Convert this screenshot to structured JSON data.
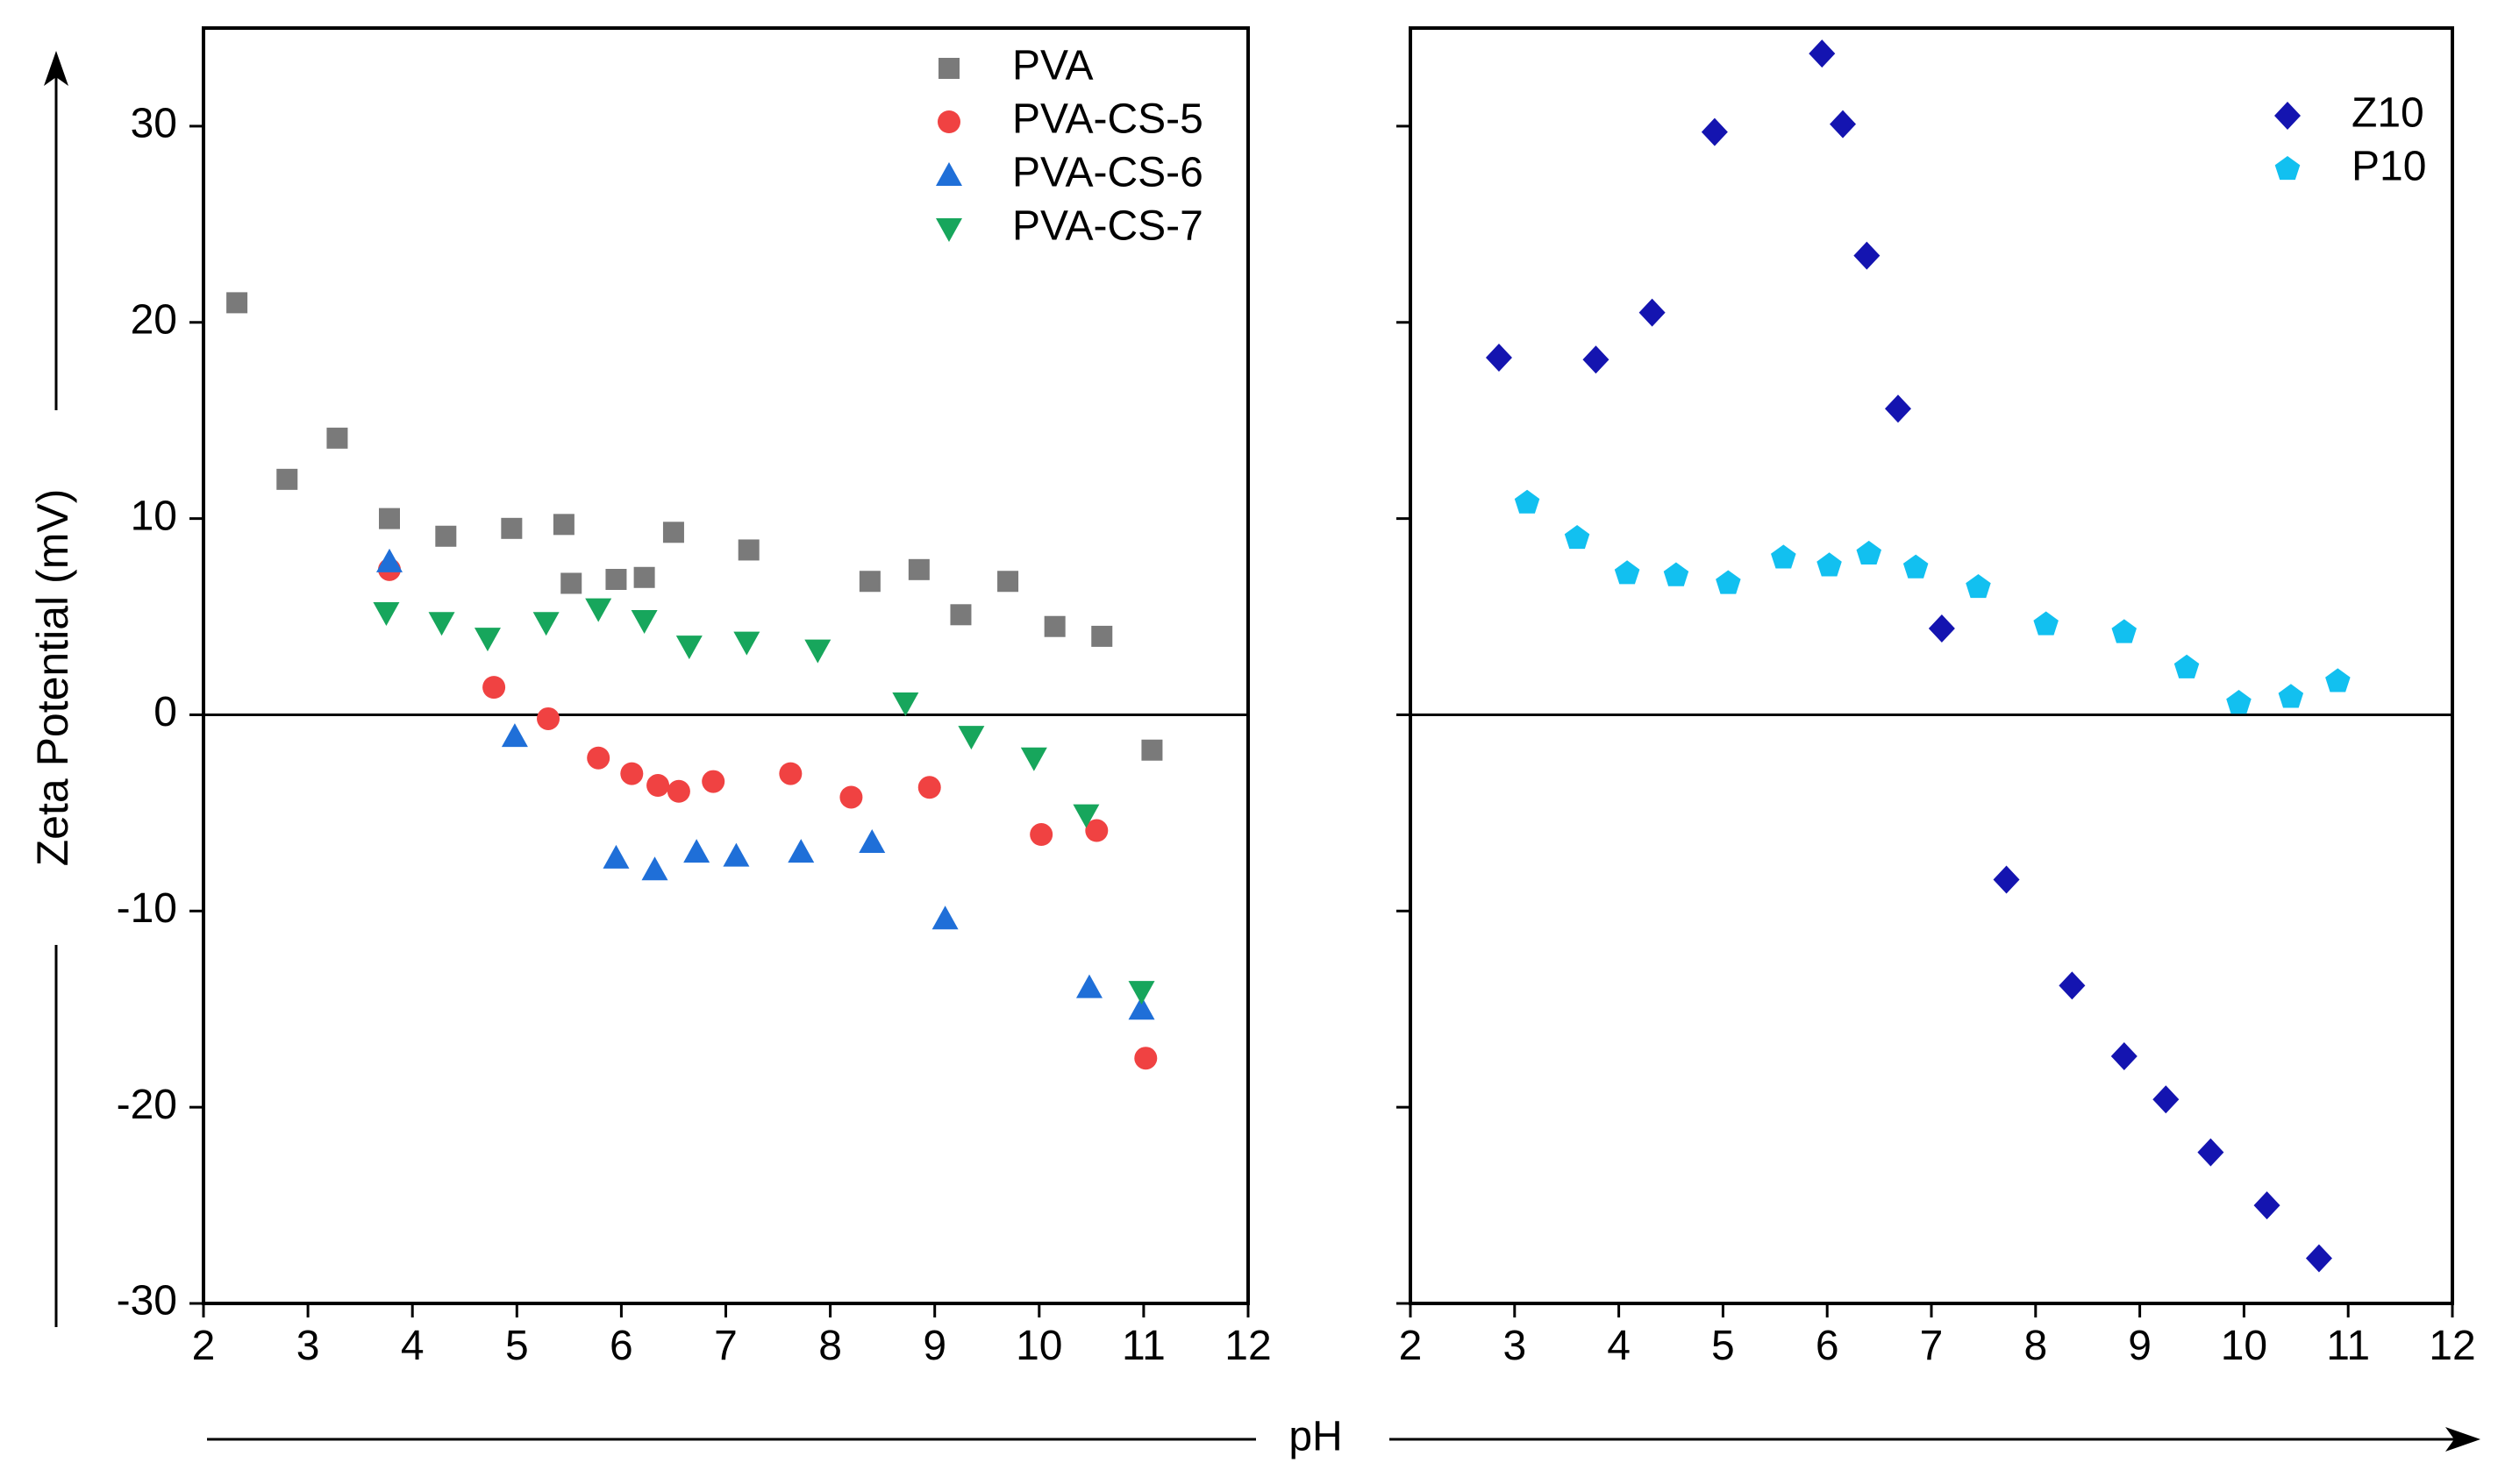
{
  "chart_data": [
    {
      "type": "scatter",
      "xlabel": "pH",
      "ylabel": "Zeta Potential (mV)",
      "xlim": [
        2,
        12
      ],
      "ylim": [
        -30,
        35
      ],
      "xticks": [
        2,
        3,
        4,
        5,
        6,
        7,
        8,
        9,
        10,
        11,
        12
      ],
      "yticks": [
        -30,
        -20,
        -10,
        0,
        10,
        20,
        30
      ],
      "xtick_labels": [
        "2",
        "3",
        "4",
        "5",
        "6",
        "7",
        "8",
        "9",
        "10",
        "11",
        "12"
      ],
      "ytick_labels": [
        "-30",
        "-20",
        "-10",
        "0",
        "10",
        "20",
        "30"
      ],
      "legend_position": "top-right",
      "series": [
        {
          "name": "PVA",
          "marker": "square",
          "color": "#7a7a7a",
          "x": [
            2.32,
            2.8,
            3.28,
            3.78,
            4.32,
            4.95,
            5.45,
            5.52,
            5.95,
            6.22,
            6.5,
            7.22,
            8.38,
            8.85,
            9.25,
            9.7,
            10.15,
            10.6,
            11.08
          ],
          "y": [
            21,
            12,
            14.1,
            10,
            9.1,
            9.5,
            9.7,
            6.7,
            6.9,
            7.0,
            9.3,
            8.4,
            6.8,
            7.4,
            5.1,
            6.8,
            4.5,
            4.0,
            -1.8
          ]
        },
        {
          "name": "PVA-CS-5",
          "marker": "circle",
          "color": "#f04242",
          "x": [
            3.78,
            4.78,
            5.3,
            5.78,
            6.1,
            6.35,
            6.55,
            6.88,
            7.62,
            8.2,
            8.95,
            10.02,
            10.55,
            11.02
          ],
          "y": [
            7.4,
            1.4,
            -0.2,
            -2.2,
            -3.0,
            -3.6,
            -3.9,
            -3.4,
            -3.0,
            -4.2,
            -3.7,
            -6.1,
            -5.9,
            -17.5
          ]
        },
        {
          "name": "PVA-CS-6",
          "marker": "triangle-up",
          "color": "#1f6fd8",
          "x": [
            3.78,
            4.98,
            5.95,
            6.32,
            6.72,
            7.1,
            7.72,
            8.4,
            9.1,
            10.48,
            10.98
          ],
          "y": [
            7.8,
            -1.1,
            -7.3,
            -7.9,
            -7.0,
            -7.2,
            -7.0,
            -6.5,
            -10.4,
            -13.9,
            -15.0
          ]
        },
        {
          "name": "PVA-CS-7",
          "marker": "triangle-down",
          "color": "#17a65c",
          "x": [
            3.75,
            4.28,
            4.72,
            5.28,
            5.78,
            6.22,
            6.65,
            7.2,
            7.88,
            8.72,
            9.35,
            9.95,
            10.45,
            10.98
          ],
          "y": [
            5.2,
            4.7,
            3.9,
            4.7,
            5.4,
            4.8,
            3.5,
            3.7,
            3.3,
            0.6,
            -1.1,
            -2.2,
            -5.1,
            -14.1
          ]
        }
      ]
    },
    {
      "type": "scatter",
      "xlabel": "pH",
      "ylabel": "",
      "xlim": [
        2,
        12
      ],
      "ylim": [
        -30,
        35
      ],
      "xticks": [
        2,
        3,
        4,
        5,
        6,
        7,
        8,
        9,
        10,
        11,
        12
      ],
      "yticks": [
        -30,
        -20,
        -10,
        0,
        10,
        20,
        30
      ],
      "xtick_labels": [
        "2",
        "3",
        "4",
        "5",
        "6",
        "7",
        "8",
        "9",
        "10",
        "11",
        "12"
      ],
      "legend_position": "top-right",
      "series": [
        {
          "name": "Z10",
          "marker": "diamond",
          "color": "#1414b0",
          "x": [
            2.85,
            3.78,
            4.32,
            4.92,
            5.95,
            6.15,
            6.38,
            6.68,
            7.1,
            7.72,
            8.35,
            8.85,
            9.25,
            9.68,
            10.22,
            10.72
          ],
          "y": [
            18.2,
            18.1,
            20.5,
            29.7,
            33.7,
            30.1,
            23.4,
            15.6,
            4.4,
            -8.4,
            -13.8,
            -17.4,
            -19.6,
            -22.3,
            -25.0,
            -27.7
          ]
        },
        {
          "name": "P10",
          "marker": "pentagon",
          "color": "#12c0f0",
          "x": [
            3.12,
            3.6,
            4.08,
            4.55,
            5.05,
            5.58,
            6.02,
            6.4,
            6.85,
            7.45,
            8.1,
            8.85,
            9.45,
            9.95,
            10.45,
            10.9
          ],
          "y": [
            10.8,
            9.0,
            7.2,
            7.1,
            6.7,
            8.0,
            7.6,
            8.2,
            7.5,
            6.5,
            4.6,
            4.2,
            2.4,
            0.6,
            0.9,
            1.7
          ]
        }
      ]
    }
  ]
}
